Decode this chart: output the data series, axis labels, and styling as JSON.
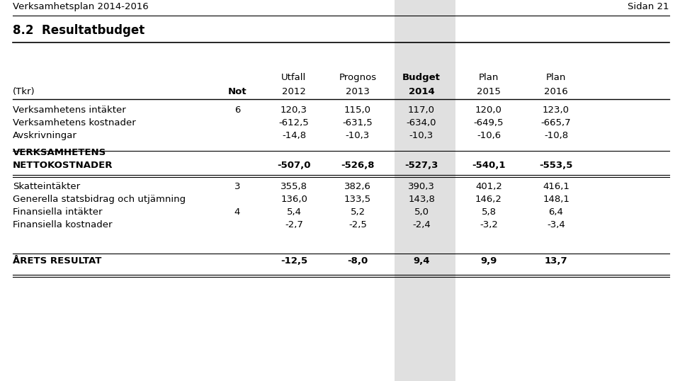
{
  "header_title_left": "Verksamhetsplan 2014-2016",
  "header_title_right": "Sidan 21",
  "section_title": "8.2  Resultatbudget",
  "background_color": "#ffffff",
  "text_color": "#000000",
  "highlight_color": "#e0e0e0",
  "rows": [
    {
      "label": "Verksamhetens intäkter",
      "not": "6",
      "vals": [
        "120,3",
        "115,0",
        "117,0",
        "120,0",
        "123,0"
      ],
      "bold": false
    },
    {
      "label": "Verksamhetens kostnader",
      "not": "",
      "vals": [
        "-612,5",
        "-631,5",
        "-634,0",
        "-649,5",
        "-665,7"
      ],
      "bold": false
    },
    {
      "label": "Avskrivningar",
      "not": "",
      "vals": [
        "-14,8",
        "-10,3",
        "-10,3",
        "-10,6",
        "-10,8"
      ],
      "bold": false
    },
    {
      "label": "VERKSAMHETENS\nNETTOKOSTNADER",
      "not": "",
      "vals": [
        "-507,0",
        "-526,8",
        "-527,3",
        "-540,1",
        "-553,5"
      ],
      "bold": true
    },
    {
      "label": "Skatteintäkter",
      "not": "3",
      "vals": [
        "355,8",
        "382,6",
        "390,3",
        "401,2",
        "416,1"
      ],
      "bold": false
    },
    {
      "label": "Generella statsbidrag och utjämning",
      "not": "",
      "vals": [
        "136,0",
        "133,5",
        "143,8",
        "146,2",
        "148,1"
      ],
      "bold": false
    },
    {
      "label": "Finansiella intäkter",
      "not": "4",
      "vals": [
        "5,4",
        "5,2",
        "5,0",
        "5,8",
        "6,4"
      ],
      "bold": false
    },
    {
      "label": "Finansiella kostnader",
      "not": "",
      "vals": [
        "-2,7",
        "-2,5",
        "-2,4",
        "-3,2",
        "-3,4"
      ],
      "bold": false
    },
    {
      "label": "ÅRETS RESULTAT",
      "not": "",
      "vals": [
        "-12,5",
        "-8,0",
        "9,4",
        "9,9",
        "13,7"
      ],
      "bold": true
    }
  ]
}
